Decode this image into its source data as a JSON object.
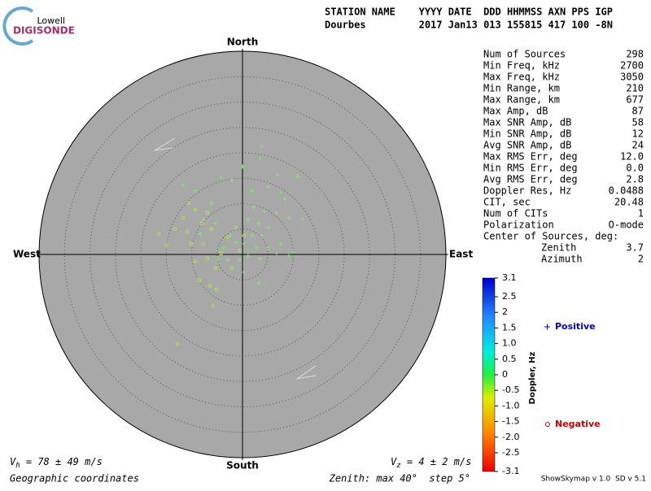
{
  "logo": {
    "top": "Lowell",
    "bottom": "DIGISONDE"
  },
  "header": {
    "line1": "STATION NAME    YYYY DATE  DDD HHMMSS AXN PPS IGP",
    "line2": "Dourbes         2017 Jan13 013 155815 417 100 -8N"
  },
  "stats": {
    "rows": [
      [
        "Num of Sources",
        "298"
      ],
      [
        "Min Freq, kHz",
        "2700"
      ],
      [
        "Max Freq, kHz",
        "3050"
      ],
      [
        "Min Range, km",
        "210"
      ],
      [
        "Max Range, km",
        "677"
      ],
      [
        "Max Amp, dB",
        "87"
      ],
      [
        "Max SNR Amp, dB",
        "58"
      ],
      [
        "Min SNR Amp, dB",
        "12"
      ],
      [
        "Avg SNR Amp, dB",
        "24"
      ],
      [
        "Max RMS Err, deg",
        "12.0"
      ],
      [
        "Min RMS Err, deg",
        "0.0"
      ],
      [
        "Avg RMS Err, deg",
        "2.8"
      ],
      [
        "Doppler Res, Hz",
        "0.0488"
      ],
      [
        "CIT, sec",
        "20.48"
      ],
      [
        "Num of CITs",
        "1"
      ],
      [
        "Polarization",
        "O-mode"
      ]
    ],
    "center_title": "Center of Sources, deg:",
    "center_rows": [
      [
        "Zenith",
        "3.7"
      ],
      [
        "Azimuth",
        "2"
      ]
    ]
  },
  "footer": {
    "vh_v": "V",
    "vh_sub": "h",
    "vh_rest": " = 78 ± 49 m/s",
    "vz_v": "V",
    "vz_sub": "z",
    "vz_rest": " = 4 ± 2 m/s",
    "coords": "Geographic coordinates",
    "zenith": "Zenith: max 40°  step 5°",
    "version": "ShowSkymap v 1.0  SD v 5.1"
  },
  "chart_data": {
    "type": "skymap",
    "directions": {
      "north": "North",
      "south": "South",
      "east": "East",
      "west": "West"
    },
    "rlim": [
      0,
      40
    ],
    "rticks": [
      5,
      10,
      15,
      20,
      25,
      30,
      35,
      40
    ],
    "series": [
      {
        "name": "Positive",
        "marker": "plus",
        "color": "#77ee66",
        "legend_color": "#0000cc",
        "x": [
          3.8,
          0,
          3.5,
          6.9,
          10.9,
          7.5,
          8.3,
          5.1,
          1.9,
          2.2,
          4.3,
          6.7,
          9.1,
          11.8,
          1.1,
          3.2,
          5.1,
          3.8,
          1.9,
          0.3,
          -1.3,
          2.7,
          5.1,
          7.5,
          9.9,
          -2.4,
          -3.7,
          -4.8,
          -2.9,
          -0.5,
          1.1,
          3.5,
          6.7,
          9.1,
          3.2,
          0.3,
          -11.7,
          -9.3,
          -4.2,
          -2.1,
          -6.1,
          -7.7,
          -5.3,
          -8.3
        ],
        "values": [
          21.3,
          17.3,
          18.9,
          15.7,
          15.4,
          12.2,
          10.9,
          13.3,
          12.5,
          9.3,
          8.5,
          8.2,
          7.2,
          6.9,
          6.9,
          6.1,
          5.3,
          3.7,
          3.7,
          2.1,
          2.4,
          1.3,
          1.3,
          2.1,
          0.5,
          3.7,
          1.3,
          -0.8,
          -1.1,
          -1.1,
          -0.3,
          -0.8,
          0.2,
          -0.3,
          -5.6,
          -3.5,
          13.6,
          12.5,
          15.2,
          14.6,
          10.1,
          6.9,
          6.1,
          4.0
        ]
      },
      {
        "name": "Negative",
        "marker": "circle",
        "color": "#aae84a",
        "legend_color": "#cc0000",
        "x": [
          -16.5,
          -14.9,
          -13.3,
          -10.9,
          -10.1,
          -11.7,
          -9.3,
          -6.9,
          -6.1,
          -7.7,
          -9.3,
          -6.9,
          -5.3,
          -8.5,
          -6.4,
          -5.1,
          -5.8,
          -2.9,
          -1.3,
          -4.2,
          -2.1,
          -0.5,
          0.3,
          -12.8,
          -10.6,
          -8.0
        ],
        "values": [
          4.0,
          1.8,
          5.0,
          4.5,
          2.1,
          7.2,
          8.8,
          8.2,
          5.0,
          2.1,
          -1.4,
          -0.8,
          -2.7,
          -5.1,
          -6.2,
          -6.9,
          -10.1,
          3.4,
          5.3,
          0.2,
          -2.7,
          0.8,
          3.7,
          -17.6,
          10.1,
          6.1
        ]
      }
    ],
    "colorbar": {
      "label": "Doppler, Hz",
      "clim": [
        -3.1,
        3.1
      ],
      "ticks": [
        3.1,
        2.5,
        2,
        1.5,
        {
          "value": 1,
          "label": "1.0"
        },
        0.5,
        0,
        -0.5,
        {
          "value": -1,
          "label": "-1.0"
        },
        -1.5,
        {
          "value": -2,
          "label": "-2.0"
        },
        -2.5,
        -3.1
      ]
    }
  }
}
